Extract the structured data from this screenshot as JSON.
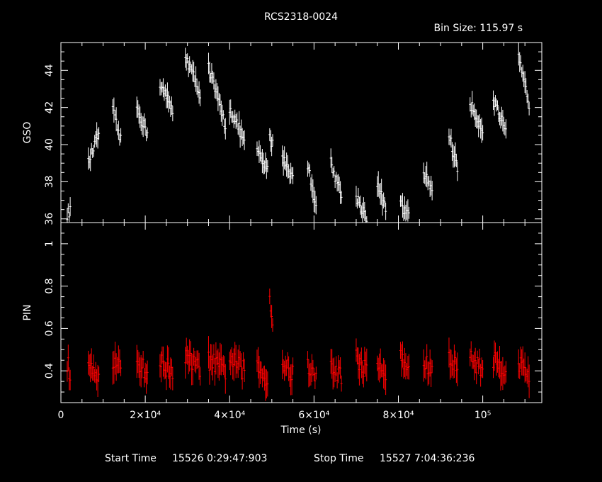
{
  "title": "RCS2318-0024",
  "bin_size": "Bin Size: 115.97 s",
  "footer": {
    "start_label": "Start Time",
    "start_value": "15526   0:29:47:903",
    "stop_label": "Stop Time",
    "stop_value": "15527   7:04:36:236"
  },
  "colors": {
    "gso": "#ffffff",
    "pin": "#ff0000",
    "axes": "#ffffff",
    "background": "#000000"
  },
  "chart_data": [
    {
      "type": "scatter",
      "panel": "top",
      "ylabel": "GSO",
      "xlim": [
        0,
        114000
      ],
      "ylim": [
        35.8,
        45.5
      ],
      "yticks": [
        {
          "v": 36,
          "label": "36"
        },
        {
          "v": 38,
          "label": "38"
        },
        {
          "v": 40,
          "label": "40"
        },
        {
          "v": 42,
          "label": "42"
        },
        {
          "v": 44,
          "label": "44"
        }
      ],
      "series": [
        {
          "error_bars": true,
          "segments": [
            {
              "x": [
                1500,
                2200
              ],
              "y": [
                36.2,
                36.5
              ]
            },
            {
              "x": [
                6500,
                9000
              ],
              "y": [
                39.0,
                40.6
              ]
            },
            {
              "x": [
                12300,
                14200
              ],
              "y": [
                41.8,
                40.2
              ]
            },
            {
              "x": [
                18000,
                20500
              ],
              "y": [
                42.0,
                40.6
              ]
            },
            {
              "x": [
                23500,
                26500
              ],
              "y": [
                43.3,
                41.8
              ]
            },
            {
              "x": [
                29500,
                33000
              ],
              "y": [
                44.8,
                42.8
              ]
            },
            {
              "x": [
                35000,
                39000
              ],
              "y": [
                44.2,
                41.0
              ]
            },
            {
              "x": [
                40000,
                43500
              ],
              "y": [
                42.0,
                40.2
              ]
            },
            {
              "x": [
                46500,
                49000
              ],
              "y": [
                39.6,
                38.6
              ]
            },
            {
              "x": [
                49500,
                50200
              ],
              "y": [
                40.5,
                40.0
              ]
            },
            {
              "x": [
                52500,
                55000
              ],
              "y": [
                39.4,
                38.2
              ]
            },
            {
              "x": [
                58500,
                60500
              ],
              "y": [
                38.9,
                36.8
              ]
            },
            {
              "x": [
                64000,
                66500
              ],
              "y": [
                39.0,
                37.3
              ]
            },
            {
              "x": [
                70000,
                72500
              ],
              "y": [
                37.2,
                36.1
              ]
            },
            {
              "x": [
                75000,
                77000
              ],
              "y": [
                37.9,
                36.5
              ]
            },
            {
              "x": [
                80500,
                82500
              ],
              "y": [
                36.8,
                36.1
              ]
            },
            {
              "x": [
                86000,
                88000
              ],
              "y": [
                38.5,
                37.6
              ]
            },
            {
              "x": [
                92000,
                94000
              ],
              "y": [
                40.5,
                38.8
              ]
            },
            {
              "x": [
                97000,
                100000
              ],
              "y": [
                42.2,
                40.8
              ]
            },
            {
              "x": [
                102500,
                105500
              ],
              "y": [
                42.5,
                40.6
              ]
            },
            {
              "x": [
                108500,
                111000
              ],
              "y": [
                44.6,
                42.2
              ]
            }
          ]
        }
      ]
    },
    {
      "type": "scatter",
      "panel": "bottom",
      "xlabel": "Time (s)",
      "ylabel": "PIN",
      "xlim": [
        0,
        114000
      ],
      "ylim": [
        0.25,
        1.1
      ],
      "xticks": [
        {
          "v": 0,
          "label": "0"
        },
        {
          "v": 20000,
          "label": "2×10⁴"
        },
        {
          "v": 40000,
          "label": "4×10⁴"
        },
        {
          "v": 60000,
          "label": "6×10⁴"
        },
        {
          "v": 80000,
          "label": "8×10⁴"
        },
        {
          "v": 100000,
          "label": "10⁵"
        }
      ],
      "yticks": [
        {
          "v": 0.4,
          "label": "0.4"
        },
        {
          "v": 0.6,
          "label": "0.6"
        },
        {
          "v": 0.8,
          "label": "0.8"
        },
        {
          "v": 1.0,
          "label": "1"
        }
      ],
      "series": [
        {
          "error_bars": true,
          "segments": [
            {
              "x": [
                1500,
                2200
              ],
              "y": [
                0.44,
                0.38
              ]
            },
            {
              "x": [
                6500,
                9000
              ],
              "y": [
                0.47,
                0.38
              ]
            },
            {
              "x": [
                12300,
                14200
              ],
              "y": [
                0.44,
                0.4
              ]
            },
            {
              "x": [
                18000,
                20500
              ],
              "y": [
                0.46,
                0.38
              ]
            },
            {
              "x": [
                23500,
                26500
              ],
              "y": [
                0.44,
                0.4
              ]
            },
            {
              "x": [
                29500,
                33000
              ],
              "y": [
                0.46,
                0.41
              ]
            },
            {
              "x": [
                35000,
                39000
              ],
              "y": [
                0.45,
                0.4
              ]
            },
            {
              "x": [
                40000,
                43500
              ],
              "y": [
                0.46,
                0.4
              ]
            },
            {
              "x": [
                46500,
                49000
              ],
              "y": [
                0.42,
                0.36
              ]
            },
            {
              "x": [
                49500,
                50200
              ],
              "y": [
                0.75,
                0.62
              ]
            },
            {
              "x": [
                52500,
                55000
              ],
              "y": [
                0.44,
                0.38
              ]
            },
            {
              "x": [
                58500,
                60500
              ],
              "y": [
                0.43,
                0.36
              ]
            },
            {
              "x": [
                64000,
                66500
              ],
              "y": [
                0.42,
                0.38
              ]
            },
            {
              "x": [
                70000,
                72500
              ],
              "y": [
                0.46,
                0.4
              ]
            },
            {
              "x": [
                75000,
                77000
              ],
              "y": [
                0.44,
                0.38
              ]
            },
            {
              "x": [
                80500,
                82500
              ],
              "y": [
                0.46,
                0.4
              ]
            },
            {
              "x": [
                86000,
                88000
              ],
              "y": [
                0.44,
                0.4
              ]
            },
            {
              "x": [
                92000,
                94000
              ],
              "y": [
                0.45,
                0.42
              ]
            },
            {
              "x": [
                97000,
                100000
              ],
              "y": [
                0.46,
                0.41
              ]
            },
            {
              "x": [
                102500,
                105500
              ],
              "y": [
                0.45,
                0.4
              ]
            },
            {
              "x": [
                108500,
                111000
              ],
              "y": [
                0.44,
                0.38
              ]
            }
          ]
        }
      ]
    }
  ]
}
